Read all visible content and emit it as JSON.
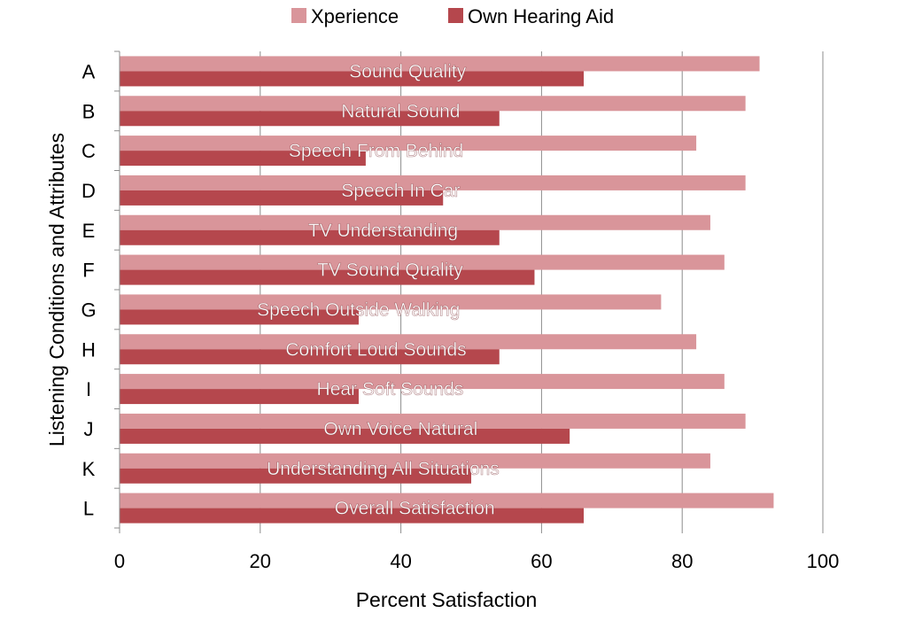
{
  "chart_data": {
    "type": "bar",
    "orientation": "horizontal",
    "categories": [
      "A",
      "B",
      "C",
      "D",
      "E",
      "F",
      "G",
      "H",
      "I",
      "J",
      "K",
      "L"
    ],
    "annotations": [
      "Sound Quality",
      "Natural Sound",
      "Speech From Behind",
      "Speech In Car",
      "TV Understanding",
      "TV Sound Quality",
      "Speech Outside Walking",
      "Comfort Loud Sounds",
      "Hear Soft Sounds",
      "Own Voice Natural",
      "Understanding All Situations",
      "Overall Satisfaction"
    ],
    "series": [
      {
        "name": "Xperience",
        "color": "#d9959a",
        "values": [
          91,
          89,
          82,
          89,
          84,
          86,
          77,
          82,
          86,
          89,
          84,
          93
        ]
      },
      {
        "name": "Own Hearing Aid",
        "color": "#b5474d",
        "values": [
          66,
          54,
          35,
          46,
          54,
          59,
          34,
          54,
          34,
          64,
          50,
          66
        ]
      }
    ],
    "xlabel": "Percent Satisfaction",
    "ylabel": "Listening Conditions and Attributes",
    "xlim": [
      0,
      100
    ],
    "xticks": [
      0,
      20,
      40,
      60,
      80,
      100
    ],
    "grid": true,
    "legend_position": "top"
  }
}
